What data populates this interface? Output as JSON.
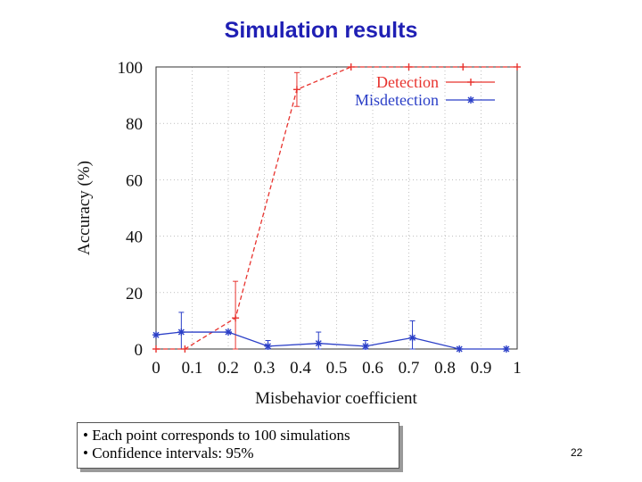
{
  "slide": {
    "title": "Simulation results",
    "notes": [
      "• Each point corresponds to 100 simulations",
      "• Confidence intervals: 95%"
    ],
    "page_number": "22"
  },
  "chart_data": {
    "type": "line",
    "title": "",
    "xlabel": "Misbehavior coefficient",
    "ylabel": "Accuracy (%)",
    "xlim": [
      0,
      1
    ],
    "ylim": [
      0,
      100
    ],
    "xticks": [
      "0",
      "0.1",
      "0.2",
      "0.3",
      "0.4",
      "0.5",
      "0.6",
      "0.7",
      "0.8",
      "0.9",
      "1"
    ],
    "yticks": [
      "0",
      "20",
      "40",
      "60",
      "80",
      "100"
    ],
    "grid": true,
    "legend_position": "top-right",
    "series": [
      {
        "name": "Detection",
        "color": "#e8332e",
        "marker": "plus",
        "points": [
          {
            "x": 0.0,
            "y": 0
          },
          {
            "x": 0.08,
            "y": 0
          },
          {
            "x": 0.22,
            "y": 11,
            "err": 13
          },
          {
            "x": 0.39,
            "y": 92,
            "err": 6
          },
          {
            "x": 0.54,
            "y": 100
          },
          {
            "x": 0.7,
            "y": 100
          },
          {
            "x": 0.85,
            "y": 100
          },
          {
            "x": 1.0,
            "y": 100
          }
        ]
      },
      {
        "name": "Misdetection",
        "color": "#2b3fc7",
        "marker": "star",
        "points": [
          {
            "x": 0.0,
            "y": 5
          },
          {
            "x": 0.07,
            "y": 6,
            "err": 7
          },
          {
            "x": 0.2,
            "y": 6
          },
          {
            "x": 0.31,
            "y": 1,
            "err": 2
          },
          {
            "x": 0.45,
            "y": 2,
            "err": 4
          },
          {
            "x": 0.58,
            "y": 1,
            "err": 2
          },
          {
            "x": 0.71,
            "y": 4,
            "err": 6
          },
          {
            "x": 0.84,
            "y": 0
          },
          {
            "x": 0.97,
            "y": 0
          }
        ]
      }
    ]
  }
}
